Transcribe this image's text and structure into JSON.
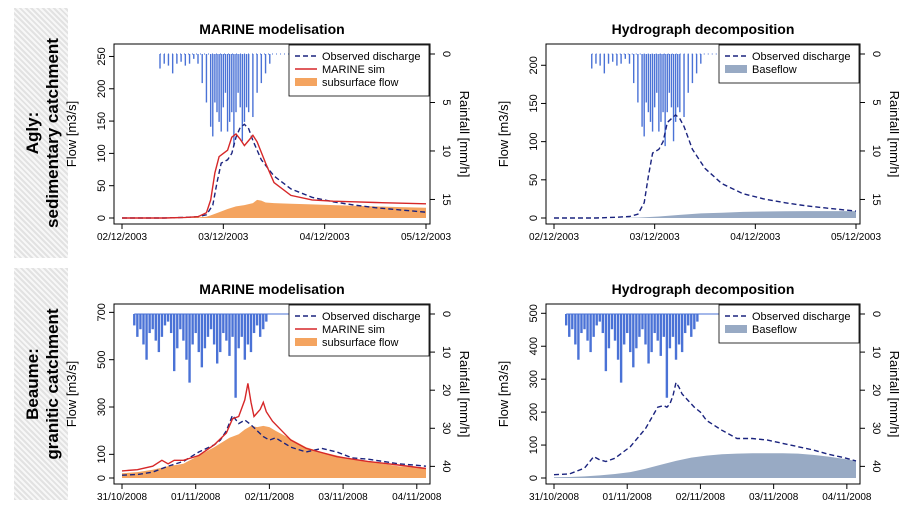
{
  "row_labels": [
    {
      "line1": "Agly:",
      "line2": "sedimentary catchment"
    },
    {
      "line1": "Beaume:",
      "line2": "granitic catchment"
    }
  ],
  "colors": {
    "observed": "#1a237e",
    "sim": "#d62728",
    "subsurface": "#f4a460",
    "baseflow": "#98aac4",
    "rain": "#4a72d6"
  },
  "chart_data": [
    {
      "type": "line",
      "title": "MARINE modelisation",
      "ylabel": "Flow [m3/s]",
      "y2label": "Rainfall [mm/h]",
      "xticks": [
        "02/12/2003",
        "03/12/2003",
        "04/12/2003",
        "05/12/2003"
      ],
      "xrange": [
        0,
        72
      ],
      "ylim": [
        0,
        260
      ],
      "yticks": [
        0,
        50,
        100,
        150,
        200,
        250
      ],
      "y2ticks": [
        0,
        5,
        10,
        15
      ],
      "y2range": [
        0,
        16.5
      ],
      "legend_position": "top-right",
      "legend": [
        "Observed discharge",
        "MARINE sim",
        "subsurface flow"
      ],
      "series": [
        {
          "name": "Observed discharge",
          "style": "dashed",
          "x": [
            0,
            10,
            15,
            18,
            20,
            21.5,
            22.5,
            23.5,
            25,
            26,
            27,
            28,
            29,
            30,
            31,
            33,
            36,
            40,
            45,
            50,
            55,
            60,
            65,
            72
          ],
          "y": [
            0,
            0,
            1,
            2,
            5,
            20,
            55,
            85,
            90,
            100,
            125,
            140,
            145,
            138,
            120,
            90,
            65,
            45,
            32,
            25,
            20,
            16,
            13,
            9
          ]
        },
        {
          "name": "MARINE sim",
          "style": "solid",
          "x": [
            0,
            10,
            15,
            18,
            20,
            21,
            22,
            23,
            24,
            25,
            26,
            27,
            28,
            29,
            30,
            31,
            32,
            34,
            36,
            40,
            45,
            50,
            55,
            60,
            65,
            72
          ],
          "y": [
            0,
            0,
            1,
            2,
            8,
            28,
            70,
            95,
            100,
            105,
            125,
            130,
            122,
            112,
            120,
            128,
            118,
            85,
            55,
            35,
            28,
            26,
            25,
            24,
            23,
            22
          ]
        },
        {
          "name": "subsurface flow",
          "style": "area",
          "x": [
            0,
            15,
            18,
            20,
            21,
            23,
            25,
            27,
            29,
            31,
            32,
            33,
            34,
            36,
            40,
            45,
            50,
            55,
            60,
            65,
            72
          ],
          "y": [
            0,
            0,
            1,
            2,
            4,
            9,
            14,
            18,
            20,
            23,
            28,
            27,
            24,
            23,
            22,
            21,
            20,
            19,
            18,
            17,
            16
          ]
        }
      ],
      "rain": {
        "x": [
          9,
          10,
          11,
          12,
          13,
          14,
          15,
          16,
          17,
          18,
          19,
          20,
          21,
          21.5,
          22,
          22.5,
          23,
          23.5,
          24,
          24.5,
          25,
          25.5,
          26,
          26.5,
          27,
          27.5,
          28,
          28.5,
          29,
          29.5,
          30,
          31,
          32,
          33,
          34,
          35
        ],
        "y": [
          1.5,
          1,
          1.2,
          2,
          1,
          0.8,
          1.2,
          1,
          0.5,
          1,
          3,
          5,
          7.5,
          8.5,
          5,
          6,
          7,
          8,
          5.5,
          4,
          8,
          7,
          6,
          9.5,
          6,
          4,
          5.5,
          9,
          7,
          5.5,
          6,
          6.5,
          4,
          3,
          2,
          1
        ]
      }
    },
    {
      "type": "line",
      "title": "Hydrograph decomposition",
      "ylabel": "Flow [m3/s]",
      "y2label": "Rainfall [mm/h]",
      "xticks": [
        "02/12/2003",
        "03/12/2003",
        "04/12/2003",
        "05/12/2003"
      ],
      "xrange": [
        0,
        72
      ],
      "ylim": [
        0,
        220
      ],
      "yticks": [
        0,
        50,
        100,
        150,
        200
      ],
      "y2ticks": [
        0,
        5,
        10,
        15
      ],
      "y2range": [
        0,
        16.5
      ],
      "legend_position": "top-right",
      "legend": [
        "Observed discharge",
        "Baseflow"
      ],
      "series": [
        {
          "name": "Observed discharge",
          "style": "dashed",
          "x": [
            0,
            10,
            15,
            18,
            20,
            21.5,
            22.5,
            23.5,
            25,
            26,
            27,
            28,
            29,
            30,
            31,
            33,
            36,
            40,
            45,
            50,
            55,
            60,
            65,
            72
          ],
          "y": [
            0,
            0,
            1,
            2,
            5,
            20,
            55,
            85,
            90,
            100,
            125,
            130,
            135,
            130,
            120,
            90,
            65,
            45,
            32,
            25,
            20,
            16,
            13,
            9
          ]
        },
        {
          "name": "Baseflow",
          "style": "area",
          "x": [
            0,
            15,
            20,
            25,
            30,
            35,
            40,
            45,
            50,
            55,
            60,
            65,
            72
          ],
          "y": [
            0,
            0,
            0.5,
            2,
            4,
            6,
            7,
            8,
            8.5,
            8.8,
            9,
            9,
            9
          ]
        }
      ],
      "rain": {
        "x": [
          9,
          10,
          11,
          12,
          13,
          14,
          15,
          16,
          17,
          18,
          19,
          20,
          21,
          21.5,
          22,
          22.5,
          23,
          23.5,
          24,
          24.5,
          25,
          25.5,
          26,
          26.5,
          27,
          27.5,
          28,
          28.5,
          29,
          29.5,
          30,
          31,
          32,
          33,
          34,
          35
        ],
        "y": [
          1.5,
          1,
          1.2,
          2,
          1,
          0.8,
          1.2,
          1,
          0.5,
          1,
          3,
          5,
          7.5,
          8.5,
          5,
          6,
          7,
          8,
          5.5,
          4,
          8,
          7,
          6,
          9.5,
          6,
          4,
          5.5,
          9,
          7,
          5.5,
          6,
          6.5,
          4,
          3,
          2,
          1
        ]
      }
    },
    {
      "type": "line",
      "title": "MARINE modelisation",
      "ylabel": "Flow [m3/s]",
      "y2label": "Rainfall [mm/h]",
      "xticks": [
        "31/10/2008",
        "01/11/2008",
        "02/11/2008",
        "03/11/2008",
        "04/11/2008"
      ],
      "xrange": [
        0,
        99
      ],
      "ylim": [
        0,
        710
      ],
      "yticks": [
        0,
        100,
        300,
        500,
        700
      ],
      "y2ticks": [
        0,
        10,
        20,
        30,
        40
      ],
      "y2range": [
        0,
        42
      ],
      "legend_position": "top-right",
      "legend": [
        "Observed discharge",
        "MARINE sim",
        "subsurface flow"
      ],
      "series": [
        {
          "name": "Observed discharge",
          "style": "dashed",
          "x": [
            0,
            5,
            10,
            15,
            20,
            25,
            30,
            32,
            34,
            36,
            38,
            40,
            42,
            44,
            46,
            48,
            50,
            55,
            60,
            65,
            70,
            75,
            80,
            85,
            90,
            95,
            99
          ],
          "y": [
            12,
            15,
            25,
            50,
            70,
            110,
            140,
            160,
            200,
            265,
            230,
            245,
            225,
            200,
            175,
            160,
            170,
            130,
            110,
            125,
            110,
            85,
            80,
            70,
            60,
            55,
            50
          ]
        },
        {
          "name": "MARINE sim",
          "style": "solid",
          "x": [
            0,
            5,
            10,
            13,
            15,
            17,
            20,
            25,
            30,
            34,
            36,
            38,
            40,
            41,
            42,
            43,
            45,
            46,
            47,
            49,
            52,
            55,
            60,
            70,
            80,
            90,
            99
          ],
          "y": [
            30,
            35,
            50,
            75,
            60,
            75,
            75,
            95,
            140,
            190,
            250,
            260,
            330,
            400,
            320,
            260,
            290,
            320,
            280,
            240,
            200,
            160,
            125,
            90,
            70,
            55,
            40
          ]
        },
        {
          "name": "subsurface flow",
          "style": "area",
          "x": [
            0,
            5,
            10,
            15,
            20,
            25,
            30,
            35,
            38,
            40,
            42,
            44,
            46,
            48,
            50,
            55,
            60,
            65,
            70,
            75,
            80,
            85,
            90,
            95,
            99
          ],
          "y": [
            20,
            25,
            35,
            50,
            60,
            95,
            130,
            170,
            185,
            205,
            220,
            215,
            220,
            215,
            200,
            165,
            130,
            110,
            95,
            80,
            70,
            60,
            50,
            45,
            40
          ]
        }
      ],
      "rain": {
        "x": [
          4,
          5,
          6,
          7,
          8,
          9,
          10,
          11,
          12,
          13,
          14,
          15,
          16,
          17,
          18,
          19,
          20,
          21,
          22,
          23,
          24,
          25,
          26,
          27,
          28,
          29,
          30,
          31,
          32,
          33,
          34,
          35,
          36,
          37,
          38,
          39,
          40,
          41,
          42,
          43,
          44,
          45,
          46,
          47
        ],
        "y": [
          3,
          6,
          4,
          8,
          12,
          5,
          4,
          7,
          10,
          6,
          3,
          2,
          5,
          15,
          9,
          4,
          7,
          12,
          18,
          8,
          5,
          10,
          14,
          9,
          6,
          4,
          8,
          13,
          10,
          5,
          7,
          11,
          6,
          22,
          9,
          6,
          12,
          8,
          10,
          5,
          3,
          6,
          4,
          2
        ]
      }
    },
    {
      "type": "line",
      "title": "Hydrograph decomposition",
      "ylabel": "Flow [m3/s]",
      "y2label": "Rainfall [mm/h]",
      "xticks": [
        "31/10/2008",
        "01/11/2008",
        "02/11/2008",
        "03/11/2008",
        "04/11/2008"
      ],
      "xrange": [
        0,
        99
      ],
      "ylim": [
        0,
        510
      ],
      "yticks": [
        0,
        100,
        200,
        300,
        400,
        500
      ],
      "y2ticks": [
        0,
        10,
        20,
        30,
        40
      ],
      "y2range": [
        0,
        42
      ],
      "legend_position": "top-right",
      "legend": [
        "Observed discharge",
        "Baseflow"
      ],
      "series": [
        {
          "name": "Observed discharge",
          "style": "dashed",
          "x": [
            0,
            5,
            10,
            13,
            15,
            17,
            20,
            25,
            30,
            34,
            36,
            37,
            38,
            39,
            40,
            41,
            42,
            44,
            46,
            48,
            50,
            55,
            60,
            65,
            70,
            75,
            80,
            85,
            90,
            95,
            99
          ],
          "y": [
            10,
            12,
            30,
            65,
            55,
            50,
            60,
            95,
            150,
            215,
            220,
            215,
            225,
            250,
            290,
            275,
            255,
            235,
            215,
            200,
            175,
            145,
            120,
            120,
            115,
            105,
            95,
            85,
            72,
            62,
            52
          ]
        },
        {
          "name": "Baseflow",
          "style": "area",
          "x": [
            0,
            5,
            10,
            15,
            20,
            25,
            30,
            35,
            40,
            45,
            50,
            55,
            60,
            65,
            70,
            75,
            80,
            85,
            90,
            95,
            99
          ],
          "y": [
            2,
            3,
            5,
            8,
            12,
            18,
            28,
            40,
            52,
            62,
            68,
            72,
            74,
            75,
            75,
            75,
            74,
            70,
            65,
            58,
            52
          ]
        }
      ],
      "rain": {
        "x": [
          4,
          5,
          6,
          7,
          8,
          9,
          10,
          11,
          12,
          13,
          14,
          15,
          16,
          17,
          18,
          19,
          20,
          21,
          22,
          23,
          24,
          25,
          26,
          27,
          28,
          29,
          30,
          31,
          32,
          33,
          34,
          35,
          36,
          37,
          38,
          39,
          40,
          41,
          42,
          43,
          44,
          45,
          46,
          47
        ],
        "y": [
          3,
          6,
          4,
          8,
          12,
          5,
          4,
          7,
          10,
          6,
          3,
          2,
          5,
          15,
          9,
          4,
          7,
          12,
          18,
          8,
          5,
          10,
          14,
          9,
          6,
          4,
          8,
          13,
          10,
          5,
          7,
          11,
          6,
          22,
          9,
          6,
          12,
          8,
          10,
          5,
          3,
          6,
          4,
          2
        ]
      }
    }
  ]
}
